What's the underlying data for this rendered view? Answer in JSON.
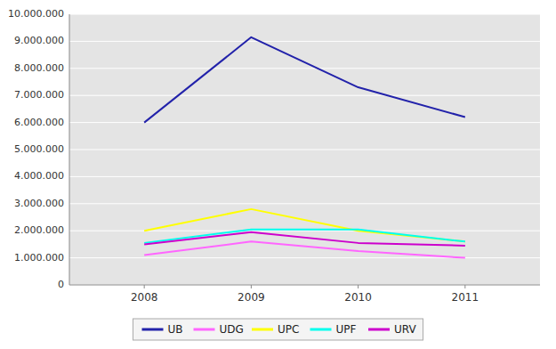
{
  "chart_data": {
    "type": "line",
    "x": [
      2008,
      2009,
      2010,
      2011
    ],
    "xlim": [
      2007.3,
      2011.7
    ],
    "xticks": [
      2008,
      2009,
      2010,
      2011
    ],
    "series": [
      {
        "name": "UB",
        "color": "#2222AA",
        "values": [
          6000000,
          9150000,
          7300000,
          6200000
        ]
      },
      {
        "name": "UDG",
        "color": "#FF66FF",
        "values": [
          1100000,
          1600000,
          1250000,
          1000000
        ]
      },
      {
        "name": "UPC",
        "color": "#FFFF00",
        "values": [
          2000000,
          2800000,
          2000000,
          1600000
        ]
      },
      {
        "name": "UPF",
        "color": "#00FFEE",
        "values": [
          1550000,
          2050000,
          2050000,
          1600000
        ]
      },
      {
        "name": "URV",
        "color": "#CC00CC",
        "values": [
          1500000,
          1950000,
          1550000,
          1450000
        ]
      }
    ],
    "ylim": [
      0,
      10000000
    ],
    "yticks": [
      0,
      {
        "value": 1000000,
        "label": "1.000.000"
      },
      {
        "value": 2000000,
        "label": "2.000.000"
      },
      {
        "value": 3000000,
        "label": "3.000.000"
      },
      {
        "value": 4000000,
        "label": "4.000.000"
      },
      {
        "value": 5000000,
        "label": "5.000.000"
      },
      {
        "value": 6000000,
        "label": "6.000.000"
      },
      {
        "value": 7000000,
        "label": "7.000.000"
      },
      {
        "value": 8000000,
        "label": "8.000.000"
      },
      {
        "value": 9000000,
        "label": "9.000.000"
      },
      {
        "value": 10000000,
        "label": "10.000.000"
      }
    ],
    "grid": true,
    "legend": "bottom"
  }
}
